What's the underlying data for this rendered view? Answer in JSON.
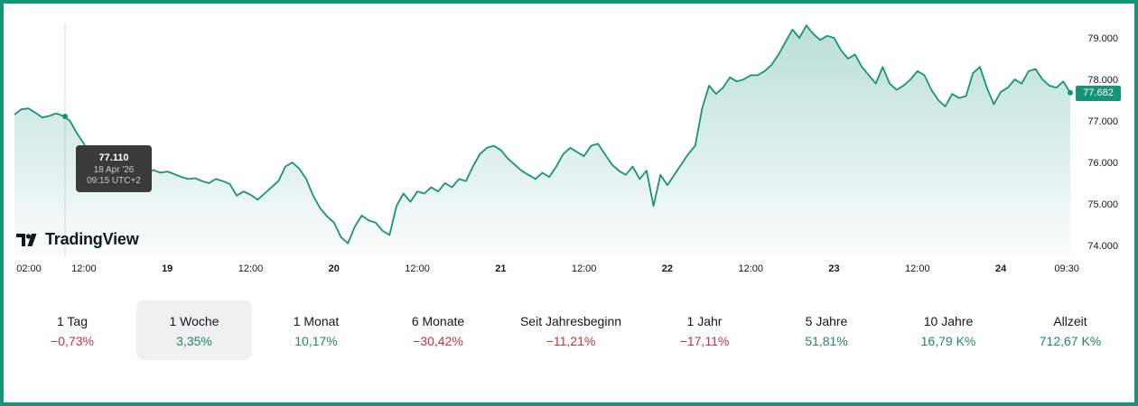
{
  "brand": "TradingView",
  "tooltip": {
    "value": "77.110",
    "date": "18 Apr '26",
    "time": "09:15 UTC+2"
  },
  "last_price": "77.682",
  "colors": {
    "line": "#169478",
    "negative": "#c8303e",
    "positive": "#22856c",
    "frame": "#169478"
  },
  "periods": [
    {
      "label": "1 Tag",
      "change": "−0,73%",
      "direction": "neg",
      "active": false
    },
    {
      "label": "1 Woche",
      "change": "3,35%",
      "direction": "pos",
      "active": true
    },
    {
      "label": "1 Monat",
      "change": "10,17%",
      "direction": "pos",
      "active": false
    },
    {
      "label": "6 Monate",
      "change": "−30,42%",
      "direction": "neg",
      "active": false
    },
    {
      "label": "Seit Jahresbeginn",
      "change": "−11,21%",
      "direction": "neg",
      "active": false
    },
    {
      "label": "1 Jahr",
      "change": "−17,11%",
      "direction": "neg",
      "active": false
    },
    {
      "label": "5 Jahre",
      "change": "51,81%",
      "direction": "pos",
      "active": false
    },
    {
      "label": "10 Jahre",
      "change": "16,79 K%",
      "direction": "pos",
      "active": false
    },
    {
      "label": "Allzeit",
      "change": "712,67 K%",
      "direction": "pos",
      "active": false
    }
  ],
  "chart_data": {
    "type": "area",
    "title": "",
    "xlabel": "",
    "ylabel": "",
    "ylim": [
      73.8,
      79.3
    ],
    "y_ticks": [
      "74.000",
      "75.000",
      "76.000",
      "77.000",
      "78.000",
      "79.000"
    ],
    "x_ticks": [
      {
        "label": "02:00",
        "t": 0,
        "bold": false
      },
      {
        "label": "12:00",
        "t": 10,
        "bold": false
      },
      {
        "label": "19",
        "t": 22,
        "bold": true
      },
      {
        "label": "12:00",
        "t": 34,
        "bold": false
      },
      {
        "label": "20",
        "t": 46,
        "bold": true
      },
      {
        "label": "12:00",
        "t": 58,
        "bold": false
      },
      {
        "label": "21",
        "t": 70,
        "bold": true
      },
      {
        "label": "12:00",
        "t": 82,
        "bold": false
      },
      {
        "label": "22",
        "t": 94,
        "bold": true
      },
      {
        "label": "12:00",
        "t": 106,
        "bold": false
      },
      {
        "label": "23",
        "t": 118,
        "bold": true
      },
      {
        "label": "12:00",
        "t": 130,
        "bold": false
      },
      {
        "label": "24",
        "t": 142,
        "bold": true
      },
      {
        "label": "09:30",
        "t": 151.5,
        "bold": false
      }
    ],
    "series": [
      {
        "t": [
          0,
          1,
          2,
          3,
          4,
          5,
          6,
          7,
          8,
          9,
          10,
          11,
          12,
          13,
          14,
          15,
          16,
          17,
          18,
          19,
          20,
          21,
          22,
          23,
          24,
          25,
          26,
          27,
          28,
          29,
          30,
          31,
          32,
          33,
          34,
          35,
          36,
          37,
          38,
          39,
          40,
          41,
          42,
          43,
          44,
          45,
          46,
          47,
          48,
          49,
          50,
          51,
          52,
          53,
          54,
          55,
          56,
          57,
          58,
          59,
          60,
          61,
          62,
          63,
          64,
          65,
          66,
          67,
          68,
          69,
          70,
          71,
          72,
          73,
          74,
          75,
          76,
          77,
          78,
          79,
          80,
          81,
          82,
          83,
          84,
          85,
          86,
          87,
          88,
          89,
          90,
          91,
          92,
          93,
          94,
          95,
          96,
          97,
          98,
          99,
          100,
          101,
          102,
          103,
          104,
          105,
          106,
          107,
          108,
          109,
          110,
          111,
          112,
          113,
          114,
          115,
          116,
          117,
          118,
          119,
          120,
          121,
          122,
          123,
          124,
          125,
          126,
          127,
          128,
          129,
          130,
          131,
          132,
          133,
          134,
          135,
          136,
          137,
          138,
          139,
          140,
          141,
          142,
          143,
          144,
          145,
          146,
          147,
          148,
          149,
          150,
          151,
          152
        ],
        "values": [
          77.15,
          77.28,
          77.3,
          77.2,
          77.08,
          77.12,
          77.18,
          77.12,
          77.0,
          76.7,
          76.45,
          76.15,
          75.95,
          75.8,
          75.7,
          75.8,
          75.78,
          75.7,
          75.62,
          75.7,
          75.82,
          75.75,
          75.78,
          75.72,
          75.65,
          75.6,
          75.62,
          75.55,
          75.5,
          75.6,
          75.55,
          75.48,
          75.2,
          75.3,
          75.22,
          75.1,
          75.25,
          75.4,
          75.55,
          75.9,
          76.0,
          75.85,
          75.6,
          75.2,
          74.9,
          74.7,
          74.55,
          74.2,
          74.05,
          74.45,
          74.72,
          74.6,
          74.55,
          74.35,
          74.25,
          74.95,
          75.25,
          75.05,
          75.3,
          75.25,
          75.4,
          75.3,
          75.5,
          75.4,
          75.6,
          75.55,
          75.9,
          76.2,
          76.35,
          76.4,
          76.3,
          76.1,
          75.95,
          75.8,
          75.7,
          75.6,
          75.75,
          75.65,
          75.9,
          76.2,
          76.35,
          76.25,
          76.15,
          76.4,
          76.45,
          76.2,
          75.95,
          75.8,
          75.7,
          75.9,
          75.6,
          75.8,
          74.95,
          75.7,
          75.45,
          75.7,
          75.95,
          76.2,
          76.4,
          77.3,
          77.85,
          77.65,
          77.8,
          78.05,
          77.95,
          78.0,
          78.1,
          78.1,
          78.2,
          78.35,
          78.6,
          78.9,
          79.2,
          79.0,
          79.3,
          79.1,
          78.95,
          79.05,
          79.0,
          78.7,
          78.5,
          78.6,
          78.3,
          78.1,
          77.9,
          78.3,
          77.9,
          77.75,
          77.85,
          78.0,
          78.2,
          78.1,
          77.75,
          77.5,
          77.35,
          77.65,
          77.55,
          77.6,
          78.15,
          78.3,
          77.8,
          77.4,
          77.7,
          77.8,
          78.0,
          77.9,
          78.2,
          78.25,
          78.0,
          77.85,
          77.8,
          77.95,
          77.68
        ]
      }
    ],
    "grid": false,
    "legend": "none"
  }
}
